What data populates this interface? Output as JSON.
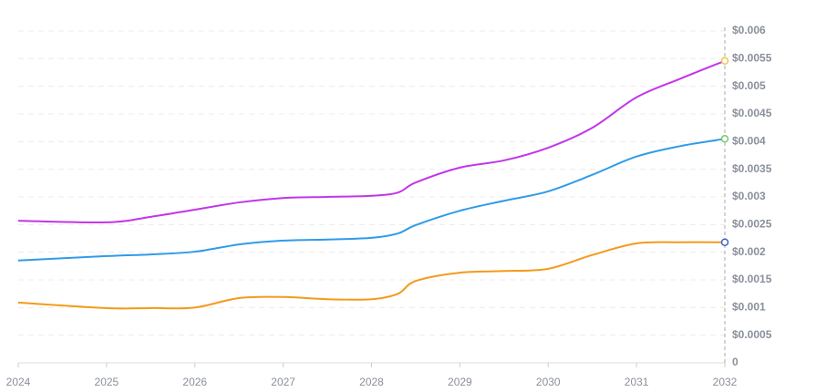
{
  "chart_data": {
    "type": "line",
    "x": [
      2024,
      2025,
      2025.5,
      2026,
      2026.5,
      2027,
      2027.5,
      2028,
      2028.3,
      2028.5,
      2029,
      2029.5,
      2030,
      2030.5,
      2031,
      2031.5,
      2032
    ],
    "series": [
      {
        "color": "#c236e8",
        "values": [
          0.00257,
          0.00254,
          0.00264,
          0.00277,
          0.0029,
          0.00298,
          0.003,
          0.00302,
          0.00308,
          0.00326,
          0.00353,
          0.00366,
          0.00389,
          0.00425,
          0.0048,
          0.00514,
          0.00546
        ]
      },
      {
        "color": "#2f9be8",
        "values": [
          0.00185,
          0.00193,
          0.00196,
          0.00201,
          0.00214,
          0.00221,
          0.00223,
          0.00226,
          0.00234,
          0.00249,
          0.00275,
          0.00293,
          0.0031,
          0.0034,
          0.00373,
          0.00392,
          0.00405
        ]
      },
      {
        "color": "#f49a1c",
        "values": [
          0.00109,
          0.00099,
          0.00099,
          0.001,
          0.00117,
          0.00119,
          0.00115,
          0.00115,
          0.00125,
          0.00148,
          0.00163,
          0.00166,
          0.0017,
          0.00195,
          0.00216,
          0.00218,
          0.00218
        ]
      }
    ],
    "marker_colors": [
      "#f0c34a",
      "#7bc86c",
      "#3b62c4"
    ],
    "xlim": [
      2024,
      2032
    ],
    "xticks": [
      2024,
      2025,
      2026,
      2027,
      2028,
      2029,
      2030,
      2031,
      2032
    ],
    "ylim": [
      0,
      0.006
    ],
    "yticks": [
      0,
      {
        "value": 0.0005,
        "label": "$0.0005"
      },
      {
        "value": 0.001,
        "label": "$0.001"
      },
      {
        "value": 0.0015,
        "label": "$0.0015"
      },
      {
        "value": 0.002,
        "label": "$0.002"
      },
      {
        "value": 0.0025,
        "label": "$0.0025"
      },
      {
        "value": 0.003,
        "label": "$0.003"
      },
      {
        "value": 0.0035,
        "label": "$0.0035"
      },
      {
        "value": 0.004,
        "label": "$0.004"
      },
      {
        "value": 0.0045,
        "label": "$0.0045"
      },
      {
        "value": 0.005,
        "label": "$0.005"
      },
      {
        "value": 0.0055,
        "label": "$0.0055"
      },
      {
        "value": 0.006,
        "label": "$0.006"
      }
    ],
    "grid": true
  }
}
